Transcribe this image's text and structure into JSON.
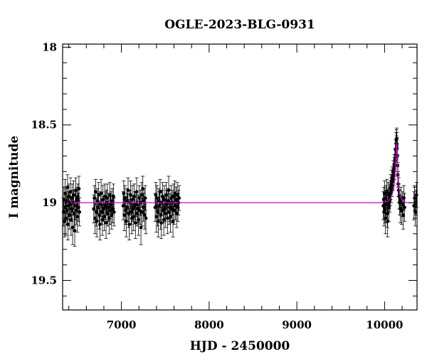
{
  "chart_data": {
    "type": "scatter",
    "title": "OGLE-2023-BLG-0931",
    "xlabel": "HJD - 2450000",
    "ylabel": "I magnitude",
    "xlim": [
      6330,
      10370
    ],
    "ylim": [
      19.69,
      17.98
    ],
    "y_inverted": true,
    "grid": false,
    "x_ticks": [
      7000,
      8000,
      9000,
      10000
    ],
    "y_ticks": [
      18,
      18.5,
      19,
      19.5
    ],
    "colors": {
      "points": "#000000",
      "model": "#cc00cc"
    },
    "baseline_mag": 19.0,
    "peak": {
      "hjd": 10138,
      "mag": 18.6
    },
    "series": [
      {
        "name": "",
        "points": [
          [
            6340,
            19.06,
            0.09
          ],
          [
            6345,
            18.98,
            0.08
          ],
          [
            6352,
            19.12,
            0.1
          ],
          [
            6358,
            18.94,
            0.09
          ],
          [
            6362,
            19.03,
            0.08
          ],
          [
            6368,
            19.1,
            0.11
          ],
          [
            6373,
            18.99,
            0.08
          ],
          [
            6380,
            19.05,
            0.09
          ],
          [
            6386,
            18.9,
            0.08
          ],
          [
            6391,
            19.14,
            0.1
          ],
          [
            6396,
            19.02,
            0.09
          ],
          [
            6402,
            18.96,
            0.08
          ],
          [
            6408,
            19.08,
            0.09
          ],
          [
            6414,
            19.01,
            0.08
          ],
          [
            6420,
            18.93,
            0.09
          ],
          [
            6426,
            19.11,
            0.1
          ],
          [
            6432,
            19.04,
            0.08
          ],
          [
            6438,
            18.97,
            0.09
          ],
          [
            6444,
            19.16,
            0.11
          ],
          [
            6450,
            19.0,
            0.08
          ],
          [
            6456,
            18.95,
            0.09
          ],
          [
            6462,
            19.07,
            0.08
          ],
          [
            6468,
            19.18,
            0.1
          ],
          [
            6474,
            19.02,
            0.09
          ],
          [
            6480,
            18.92,
            0.08
          ],
          [
            6486,
            19.05,
            0.09
          ],
          [
            6492,
            18.98,
            0.08
          ],
          [
            6498,
            19.09,
            0.1
          ],
          [
            6504,
            18.96,
            0.08
          ],
          [
            6510,
            19.03,
            0.09
          ],
          [
            6516,
            18.91,
            0.08
          ],
          [
            6522,
            19.06,
            0.09
          ],
          [
            6685,
            19.04,
            0.09
          ],
          [
            6692,
            18.97,
            0.08
          ],
          [
            6699,
            19.1,
            0.1
          ],
          [
            6706,
            18.93,
            0.08
          ],
          [
            6713,
            19.06,
            0.09
          ],
          [
            6720,
            19.12,
            0.1
          ],
          [
            6727,
            18.99,
            0.08
          ],
          [
            6734,
            19.03,
            0.09
          ],
          [
            6741,
            18.95,
            0.08
          ],
          [
            6748,
            19.08,
            0.09
          ],
          [
            6755,
            19.14,
            0.1
          ],
          [
            6762,
            19.01,
            0.08
          ],
          [
            6769,
            18.94,
            0.09
          ],
          [
            6776,
            19.06,
            0.08
          ],
          [
            6783,
            19.11,
            0.1
          ],
          [
            6790,
            18.98,
            0.09
          ],
          [
            6797,
            19.04,
            0.08
          ],
          [
            6804,
            19.09,
            0.09
          ],
          [
            6811,
            18.96,
            0.08
          ],
          [
            6818,
            19.02,
            0.09
          ],
          [
            6825,
            19.13,
            0.1
          ],
          [
            6832,
            19.0,
            0.08
          ],
          [
            6839,
            18.97,
            0.09
          ],
          [
            6846,
            19.07,
            0.08
          ],
          [
            6853,
            19.03,
            0.09
          ],
          [
            6860,
            19.1,
            0.1
          ],
          [
            6867,
            18.95,
            0.08
          ],
          [
            6874,
            19.05,
            0.09
          ],
          [
            6881,
            19.01,
            0.08
          ],
          [
            6888,
            19.08,
            0.09
          ],
          [
            6895,
            18.99,
            0.08
          ],
          [
            6902,
            19.04,
            0.09
          ],
          [
            6909,
            18.96,
            0.08
          ],
          [
            6916,
            19.06,
            0.09
          ],
          [
            7020,
            19.02,
            0.09
          ],
          [
            7027,
            18.94,
            0.08
          ],
          [
            7034,
            19.08,
            0.1
          ],
          [
            7041,
            18.97,
            0.08
          ],
          [
            7048,
            19.05,
            0.09
          ],
          [
            7055,
            19.12,
            0.1
          ],
          [
            7062,
            18.99,
            0.08
          ],
          [
            7069,
            19.03,
            0.09
          ],
          [
            7076,
            18.92,
            0.08
          ],
          [
            7083,
            19.07,
            0.09
          ],
          [
            7090,
            19.14,
            0.1
          ],
          [
            7097,
            19.0,
            0.08
          ],
          [
            7104,
            18.95,
            0.09
          ],
          [
            7111,
            19.06,
            0.08
          ],
          [
            7118,
            19.1,
            0.1
          ],
          [
            7125,
            18.98,
            0.09
          ],
          [
            7132,
            19.04,
            0.08
          ],
          [
            7139,
            19.09,
            0.09
          ],
          [
            7146,
            18.96,
            0.08
          ],
          [
            7153,
            19.02,
            0.09
          ],
          [
            7160,
            19.13,
            0.1
          ],
          [
            7167,
            19.01,
            0.08
          ],
          [
            7174,
            18.93,
            0.09
          ],
          [
            7181,
            19.07,
            0.08
          ],
          [
            7188,
            19.04,
            0.09
          ],
          [
            7195,
            19.11,
            0.1
          ],
          [
            7202,
            18.97,
            0.08
          ],
          [
            7209,
            19.05,
            0.09
          ],
          [
            7216,
            19.0,
            0.08
          ],
          [
            7223,
            19.16,
            0.11
          ],
          [
            7230,
            18.95,
            0.08
          ],
          [
            7237,
            19.06,
            0.09
          ],
          [
            7244,
            18.91,
            0.08
          ],
          [
            7251,
            19.03,
            0.09
          ],
          [
            7258,
            18.99,
            0.08
          ],
          [
            7265,
            19.08,
            0.09
          ],
          [
            7272,
            18.97,
            0.08
          ],
          [
            7279,
            19.1,
            0.1
          ],
          [
            7385,
            19.03,
            0.09
          ],
          [
            7392,
            18.95,
            0.08
          ],
          [
            7399,
            19.09,
            0.1
          ],
          [
            7406,
            18.97,
            0.08
          ],
          [
            7413,
            19.06,
            0.09
          ],
          [
            7420,
            19.12,
            0.1
          ],
          [
            7427,
            18.99,
            0.08
          ],
          [
            7434,
            19.02,
            0.09
          ],
          [
            7441,
            18.93,
            0.08
          ],
          [
            7448,
            19.08,
            0.09
          ],
          [
            7455,
            19.13,
            0.1
          ],
          [
            7462,
            19.0,
            0.08
          ],
          [
            7469,
            18.96,
            0.09
          ],
          [
            7476,
            19.05,
            0.08
          ],
          [
            7483,
            19.11,
            0.1
          ],
          [
            7490,
            18.98,
            0.09
          ],
          [
            7497,
            19.04,
            0.08
          ],
          [
            7504,
            19.07,
            0.09
          ],
          [
            7511,
            18.95,
            0.08
          ],
          [
            7518,
            19.01,
            0.09
          ],
          [
            7525,
            19.1,
            0.1
          ],
          [
            7532,
            18.99,
            0.08
          ],
          [
            7539,
            18.92,
            0.09
          ],
          [
            7546,
            19.06,
            0.08
          ],
          [
            7553,
            19.03,
            0.09
          ],
          [
            7560,
            19.09,
            0.1
          ],
          [
            7567,
            18.97,
            0.08
          ],
          [
            7574,
            19.04,
            0.09
          ],
          [
            7581,
            19.0,
            0.08
          ],
          [
            7588,
            19.12,
            0.1
          ],
          [
            7595,
            18.96,
            0.08
          ],
          [
            7602,
            19.05,
            0.09
          ],
          [
            7609,
            18.94,
            0.08
          ],
          [
            7616,
            19.02,
            0.09
          ],
          [
            7623,
            18.98,
            0.08
          ],
          [
            7630,
            19.07,
            0.09
          ],
          [
            7637,
            18.95,
            0.08
          ],
          [
            7644,
            19.03,
            0.09
          ],
          [
            7651,
            19.0,
            0.08
          ],
          [
            7658,
            18.97,
            0.08
          ],
          [
            9985,
            19.02,
            0.09
          ],
          [
            9990,
            18.98,
            0.08
          ],
          [
            9995,
            19.06,
            0.09
          ],
          [
            10000,
            18.94,
            0.08
          ],
          [
            10005,
            19.04,
            0.09
          ],
          [
            10010,
            19.1,
            0.1
          ],
          [
            10015,
            18.97,
            0.08
          ],
          [
            10020,
            19.01,
            0.09
          ],
          [
            10025,
            18.93,
            0.08
          ],
          [
            10030,
            19.07,
            0.09
          ],
          [
            10035,
            19.12,
            0.1
          ],
          [
            10040,
            18.99,
            0.08
          ],
          [
            10045,
            18.95,
            0.08
          ],
          [
            10050,
            19.03,
            0.09
          ],
          [
            10055,
            18.96,
            0.08
          ],
          [
            10060,
            18.98,
            0.08
          ],
          [
            10065,
            18.94,
            0.08
          ],
          [
            10070,
            18.9,
            0.08
          ],
          [
            10075,
            18.92,
            0.08
          ],
          [
            10080,
            18.86,
            0.07
          ],
          [
            10085,
            18.89,
            0.07
          ],
          [
            10090,
            18.84,
            0.07
          ],
          [
            10095,
            18.85,
            0.07
          ],
          [
            10100,
            18.8,
            0.07
          ],
          [
            10105,
            18.82,
            0.07
          ],
          [
            10110,
            18.76,
            0.07
          ],
          [
            10114,
            18.78,
            0.07
          ],
          [
            10118,
            18.72,
            0.07
          ],
          [
            10122,
            18.73,
            0.07
          ],
          [
            10126,
            18.66,
            0.07
          ],
          [
            10129,
            18.69,
            0.07
          ],
          [
            10132,
            18.62,
            0.07
          ],
          [
            10134,
            18.6,
            0.07
          ],
          [
            10136,
            18.64,
            0.07
          ],
          [
            10138,
            18.59,
            0.07
          ],
          [
            10140,
            18.62,
            0.07
          ],
          [
            10142,
            18.65,
            0.07
          ],
          [
            10145,
            18.7,
            0.07
          ],
          [
            10148,
            18.76,
            0.07
          ],
          [
            10151,
            18.82,
            0.08
          ],
          [
            10155,
            18.88,
            0.08
          ],
          [
            10160,
            18.92,
            0.08
          ],
          [
            10166,
            18.96,
            0.08
          ],
          [
            10172,
            19.0,
            0.08
          ],
          [
            10180,
            19.04,
            0.09
          ],
          [
            10188,
            18.98,
            0.08
          ],
          [
            10196,
            19.05,
            0.09
          ],
          [
            10204,
            19.01,
            0.08
          ],
          [
            10212,
            19.08,
            0.09
          ],
          [
            10220,
            18.97,
            0.08
          ],
          [
            10228,
            19.03,
            0.09
          ],
          [
            10335,
            19.02,
            0.09
          ],
          [
            10342,
            18.97,
            0.08
          ],
          [
            10350,
            19.06,
            0.09
          ],
          [
            10357,
            19.0,
            0.08
          ],
          [
            10364,
            18.95,
            0.08
          ]
        ]
      }
    ],
    "model": {
      "name": "",
      "x": [
        6330,
        9950,
        10040,
        10070,
        10090,
        10105,
        10115,
        10122,
        10128,
        10132,
        10135,
        10138,
        10141,
        10144,
        10148,
        10154,
        10161,
        10171,
        10186,
        10210,
        10250,
        10370
      ],
      "y": [
        19.0,
        19.0,
        18.99,
        18.97,
        18.94,
        18.9,
        18.85,
        18.8,
        18.73,
        18.67,
        18.63,
        18.61,
        18.63,
        18.67,
        18.74,
        18.82,
        18.89,
        18.94,
        18.97,
        18.99,
        19.0,
        19.0
      ]
    }
  }
}
